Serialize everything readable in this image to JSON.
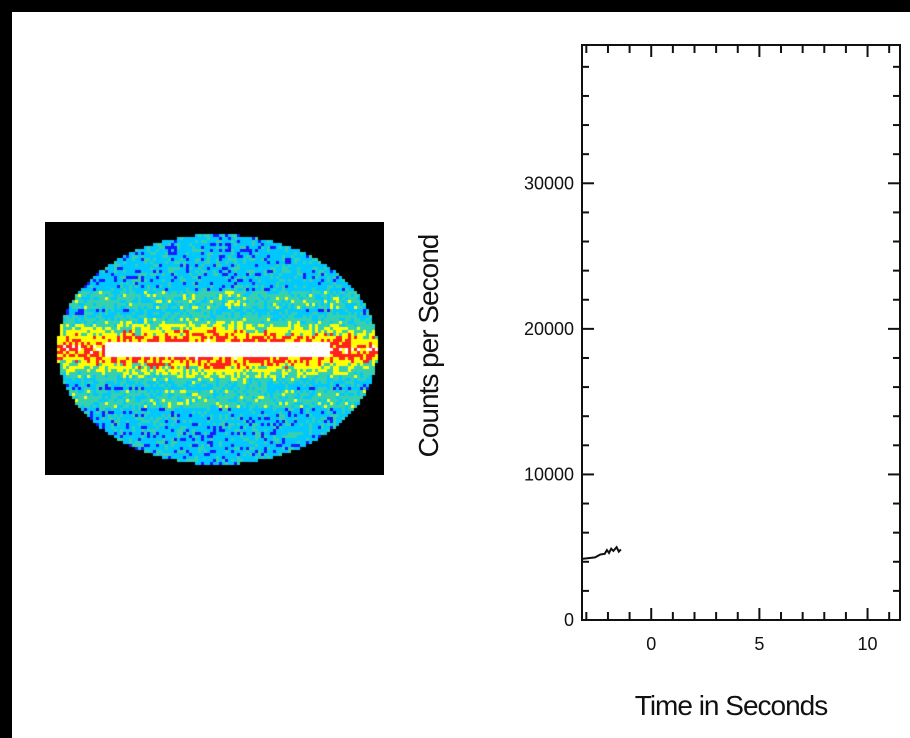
{
  "colors": {
    "background": "#000000",
    "panel": "#ffffff",
    "axis": "#111111",
    "series": "#111111"
  },
  "skymap": {
    "name": "all-sky map",
    "palette": [
      "#1a1aff",
      "#00c8ff",
      "#35d0b0",
      "#ffff00",
      "#ff2020",
      "#ffffff"
    ]
  },
  "chart_data": {
    "type": "line",
    "xlabel": "Time in Seconds",
    "ylabel": "Counts per Second",
    "xlim": [
      -3.2,
      11.5
    ],
    "ylim": [
      0,
      39500
    ],
    "xticks": [
      0,
      5,
      10
    ],
    "yticks": [
      0,
      10000,
      20000,
      30000
    ],
    "x_minor_step": 1,
    "y_minor_step": 2000,
    "grid": false,
    "series": [
      {
        "x": [
          -3.2,
          -2.6,
          -2.35,
          -2.15,
          -2.05,
          -1.95,
          -1.85,
          -1.75,
          -1.6,
          -1.5,
          -1.4
        ],
        "y": [
          4200,
          4300,
          4500,
          4550,
          4800,
          4600,
          4900,
          4750,
          5000,
          4700,
          4850
        ]
      }
    ]
  }
}
